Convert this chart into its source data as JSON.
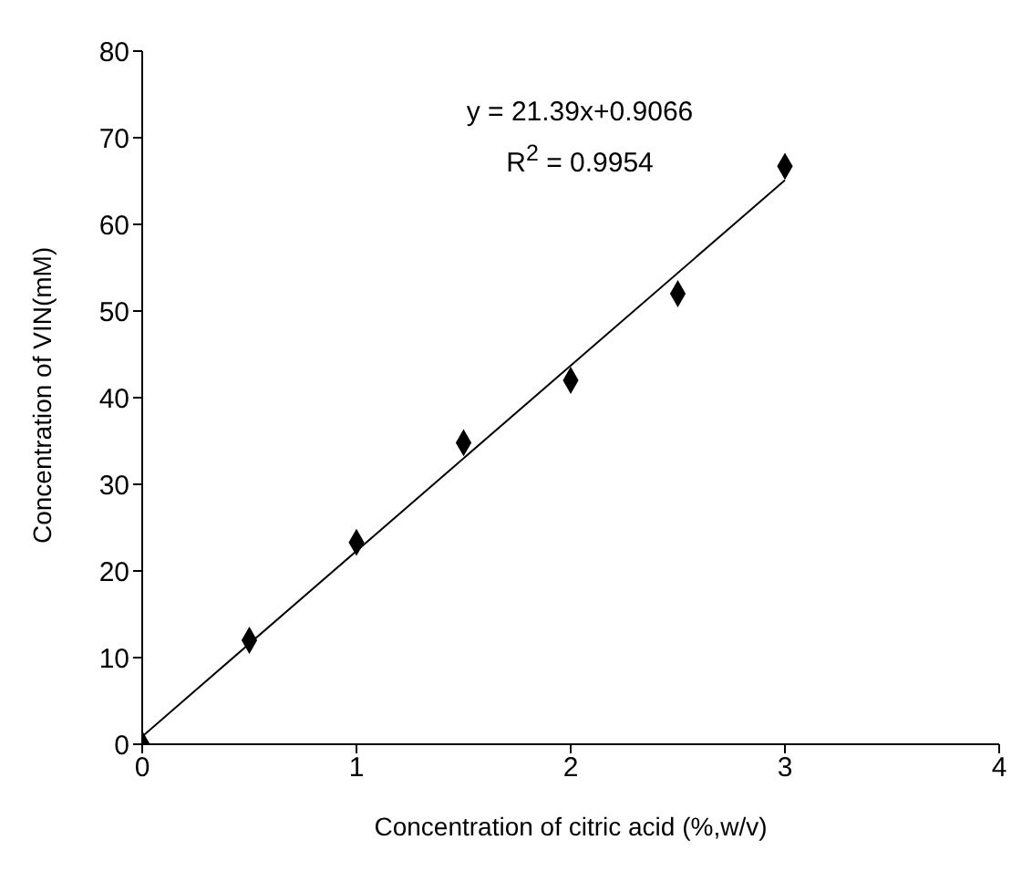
{
  "chart_data": {
    "type": "scatter",
    "xlabel": "Concentration of citric acid (%,w/v)",
    "ylabel": "Concentration of VIN(mM)",
    "annotations": [
      "y = 21.39x+0.9066",
      "R$^{2}$ = 0.9954"
    ],
    "series": [
      {
        "color": "#000000",
        "marker": "diamond",
        "x": [
          0,
          0.5,
          1,
          1.5,
          2,
          2.5,
          3
        ],
        "values": [
          0,
          12,
          23.3,
          34.8,
          42,
          52,
          66.7
        ]
      },
      {
        "type": "line",
        "color": "#000000",
        "marker": "none",
        "line_style": "solid",
        "x": [
          0,
          3
        ],
        "values": [
          0.9,
          65.1
        ]
      }
    ],
    "xlim": [
      0,
      4
    ],
    "xticks": [
      0,
      1,
      2,
      3,
      4
    ],
    "ylim": [
      0,
      80
    ],
    "yticks": [
      0,
      10,
      20,
      30,
      40,
      50,
      60,
      70,
      80
    ],
    "grid": false
  }
}
